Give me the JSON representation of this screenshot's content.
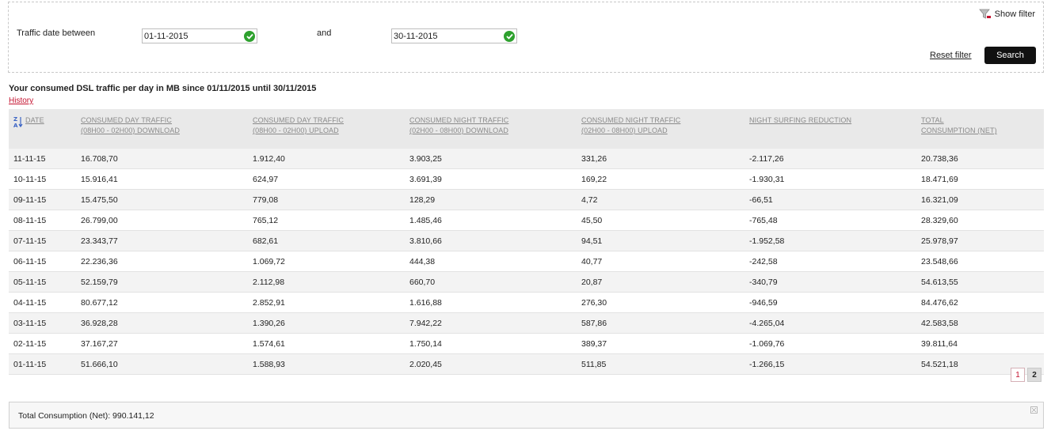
{
  "filter": {
    "show_filter_label": "Show filter",
    "traffic_date_label": "Traffic date between",
    "from_value": "01-11-2015",
    "and_label": "and",
    "to_value": "30-11-2015",
    "reset_label": "Reset filter",
    "search_label": "Search"
  },
  "heading": "Your consumed DSL traffic per day in MB since 01/11/2015 until 30/11/2015",
  "history_label": "History",
  "columns": [
    {
      "line1": "Date",
      "line2": ""
    },
    {
      "line1": "Consumed day traffic",
      "line2": "(08H00 - 02H00) download"
    },
    {
      "line1": "Consumed day traffic",
      "line2": "(08H00 - 02H00) upload"
    },
    {
      "line1": "Consumed night traffic",
      "line2": "(02H00 - 08H00) download"
    },
    {
      "line1": "Consumed night traffic",
      "line2": "(02H00 - 08H00) upload"
    },
    {
      "line1": "Night surfing reduction",
      "line2": ""
    },
    {
      "line1": "Total",
      "line2": "consumption (Net)"
    }
  ],
  "rows": [
    [
      "11-11-15",
      "16.708,70",
      "1.912,40",
      "3.903,25",
      "331,26",
      "-2.117,26",
      "20.738,36"
    ],
    [
      "10-11-15",
      "15.916,41",
      "624,97",
      "3.691,39",
      "169,22",
      "-1.930,31",
      "18.471,69"
    ],
    [
      "09-11-15",
      "15.475,50",
      "779,08",
      "128,29",
      "4,72",
      "-66,51",
      "16.321,09"
    ],
    [
      "08-11-15",
      "26.799,00",
      "765,12",
      "1.485,46",
      "45,50",
      "-765,48",
      "28.329,60"
    ],
    [
      "07-11-15",
      "23.343,77",
      "682,61",
      "3.810,66",
      "94,51",
      "-1.952,58",
      "25.978,97"
    ],
    [
      "06-11-15",
      "22.236,36",
      "1.069,72",
      "444,38",
      "40,77",
      "-242,58",
      "23.548,66"
    ],
    [
      "05-11-15",
      "52.159,79",
      "2.112,98",
      "660,70",
      "20,87",
      "-340,79",
      "54.613,55"
    ],
    [
      "04-11-15",
      "80.677,12",
      "2.852,91",
      "1.616,88",
      "276,30",
      "-946,59",
      "84.476,62"
    ],
    [
      "03-11-15",
      "36.928,28",
      "1.390,26",
      "7.942,22",
      "587,86",
      "-4.265,04",
      "42.583,58"
    ],
    [
      "02-11-15",
      "37.167,27",
      "1.574,61",
      "1.750,14",
      "389,37",
      "-1.069,76",
      "39.811,64"
    ],
    [
      "01-11-15",
      "51.666,10",
      "1.588,93",
      "2.020,45",
      "511,85",
      "-1.266,15",
      "54.521,18"
    ]
  ],
  "pagination": {
    "page1": "1",
    "page2": "2",
    "current": "2"
  },
  "total": "Total Consumption (Net): 990.141,12",
  "colors": {
    "accent": "#c4122f",
    "button": "#111111",
    "ok": "#2ea12e",
    "header_bg": "#e9e9e9"
  }
}
